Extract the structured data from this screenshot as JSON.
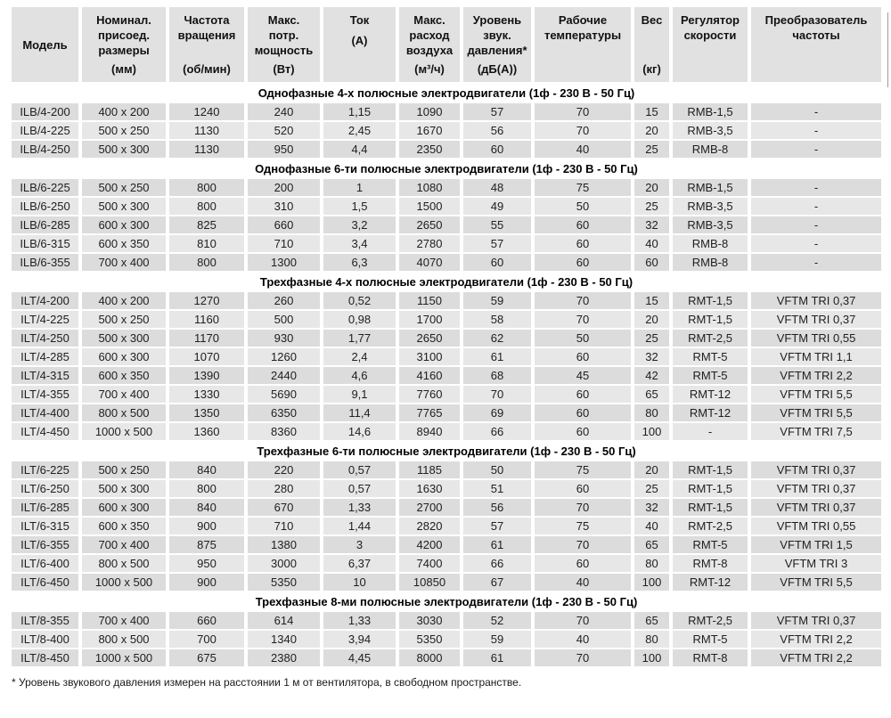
{
  "colors": {
    "cell_dark": "#dcdcdc",
    "cell_light": "#e7e7e7",
    "header_bg": "#e1e1e1",
    "text": "#202020"
  },
  "table": {
    "columns": [
      {
        "id": "model",
        "width": 75,
        "label_lines": [
          "Модель"
        ],
        "unit": null,
        "header_layout": "center"
      },
      {
        "id": "size",
        "width": 94,
        "label_lines": [
          "Номинал.",
          "присоед.",
          "размеры"
        ],
        "unit": "(мм)",
        "header_layout": "between"
      },
      {
        "id": "speed",
        "width": 84,
        "label_lines": [
          "Частота",
          "вращения"
        ],
        "unit": "(об/мин)",
        "header_layout": "between"
      },
      {
        "id": "power",
        "width": 81,
        "label_lines": [
          "Макс.",
          "потр.",
          "мощность"
        ],
        "unit": "(Вт)",
        "header_layout": "between"
      },
      {
        "id": "current",
        "width": 81,
        "label_lines": [
          "Ток"
        ],
        "unit": "(А)",
        "header_layout": "inline"
      },
      {
        "id": "airflow",
        "width": 68,
        "label_lines": [
          "Макс.",
          "расход",
          "воздуха"
        ],
        "unit": "(м³/ч)",
        "header_layout": "between"
      },
      {
        "id": "noise",
        "width": 76,
        "label_lines": [
          "Уровень",
          "звук.",
          "давления*"
        ],
        "unit": "(дБ(А))",
        "header_layout": "between"
      },
      {
        "id": "temperature",
        "width": 108,
        "label_lines": [
          "Рабочие",
          "температуры"
        ],
        "unit": null,
        "header_layout": "top"
      },
      {
        "id": "weight",
        "width": 39,
        "label_lines": [
          "Вес"
        ],
        "unit": "(кг)",
        "header_layout": "between"
      },
      {
        "id": "regulator",
        "width": 84,
        "label_lines": [
          "Регулятор",
          "скорости"
        ],
        "unit": null,
        "header_layout": "top"
      },
      {
        "id": "converter",
        "width": 146,
        "label_lines": [
          "Преобразователь",
          "частоты"
        ],
        "unit": null,
        "header_layout": "top"
      }
    ],
    "sections": [
      {
        "title": "Однофазные 4-х полюсные электродвигатели (1ф - 230 В - 50 Гц)",
        "rows": [
          [
            "ILB/4-200",
            "400 x 200",
            "1240",
            "240",
            "1,15",
            "1090",
            "57",
            "70",
            "15",
            "RMB-1,5",
            "-"
          ],
          [
            "ILB/4-225",
            "500 x 250",
            "1130",
            "520",
            "2,45",
            "1670",
            "56",
            "70",
            "20",
            "RMB-3,5",
            "-"
          ],
          [
            "ILB/4-250",
            "500 x 300",
            "1130",
            "950",
            "4,4",
            "2350",
            "60",
            "40",
            "25",
            "RMB-8",
            "-"
          ]
        ]
      },
      {
        "title": "Однофазные 6-ти полюсные электродвигатели (1ф - 230 В - 50 Гц)",
        "rows": [
          [
            "ILB/6-225",
            "500 x 250",
            "800",
            "200",
            "1",
            "1080",
            "48",
            "75",
            "20",
            "RMB-1,5",
            "-"
          ],
          [
            "ILB/6-250",
            "500 x 300",
            "800",
            "310",
            "1,5",
            "1500",
            "49",
            "50",
            "25",
            "RMB-3,5",
            "-"
          ],
          [
            "ILB/6-285",
            "600 x 300",
            "825",
            "660",
            "3,2",
            "2650",
            "55",
            "60",
            "32",
            "RMB-3,5",
            "-"
          ],
          [
            "ILB/6-315",
            "600 x 350",
            "810",
            "710",
            "3,4",
            "2780",
            "57",
            "60",
            "40",
            "RMB-8",
            "-"
          ],
          [
            "ILB/6-355",
            "700 x 400",
            "800",
            "1300",
            "6,3",
            "4070",
            "60",
            "60",
            "60",
            "RMB-8",
            "-"
          ]
        ]
      },
      {
        "title": "Трехфазные 4-х полюсные электродвигатели (1ф - 230 В - 50 Гц)",
        "rows": [
          [
            "ILT/4-200",
            "400 x 200",
            "1270",
            "260",
            "0,52",
            "1150",
            "59",
            "70",
            "15",
            "RMT-1,5",
            "VFTM TRI 0,37"
          ],
          [
            "ILT/4-225",
            "500 x 250",
            "1160",
            "500",
            "0,98",
            "1700",
            "58",
            "70",
            "20",
            "RMT-1,5",
            "VFTM TRI 0,37"
          ],
          [
            "ILT/4-250",
            "500 x 300",
            "1170",
            "930",
            "1,77",
            "2650",
            "62",
            "50",
            "25",
            "RMT-2,5",
            "VFTM TRI 0,55"
          ],
          [
            "ILT/4-285",
            "600 x 300",
            "1070",
            "1260",
            "2,4",
            "3100",
            "61",
            "60",
            "32",
            "RMT-5",
            "VFTM TRI 1,1"
          ],
          [
            "ILT/4-315",
            "600 x 350",
            "1390",
            "2440",
            "4,6",
            "4160",
            "68",
            "45",
            "42",
            "RMT-5",
            "VFTM TRI 2,2"
          ],
          [
            "ILT/4-355",
            "700 x 400",
            "1330",
            "5690",
            "9,1",
            "7760",
            "70",
            "60",
            "65",
            "RMT-12",
            "VFTM TRI 5,5"
          ],
          [
            "ILT/4-400",
            "800 x 500",
            "1350",
            "6350",
            "11,4",
            "7765",
            "69",
            "60",
            "80",
            "RMT-12",
            "VFTM TRI 5,5"
          ],
          [
            "ILT/4-450",
            "1000 x 500",
            "1360",
            "8360",
            "14,6",
            "8940",
            "66",
            "60",
            "100",
            "-",
            "VFTM TRI 7,5"
          ]
        ]
      },
      {
        "title": "Трехфазные 6-ти полюсные электродвигатели (1ф - 230 В - 50 Гц)",
        "rows": [
          [
            "ILT/6-225",
            "500 x 250",
            "840",
            "220",
            "0,57",
            "1185",
            "50",
            "75",
            "20",
            "RMT-1,5",
            "VFTM TRI 0,37"
          ],
          [
            "ILT/6-250",
            "500 x 300",
            "800",
            "280",
            "0,57",
            "1630",
            "51",
            "60",
            "25",
            "RMT-1,5",
            "VFTM TRI 0,37"
          ],
          [
            "ILT/6-285",
            "600 x 300",
            "840",
            "670",
            "1,33",
            "2700",
            "56",
            "70",
            "32",
            "RMT-1,5",
            "VFTM TRI 0,37"
          ],
          [
            "ILT/6-315",
            "600 x 350",
            "900",
            "710",
            "1,44",
            "2820",
            "57",
            "75",
            "40",
            "RMT-2,5",
            "VFTM TRI 0,55"
          ],
          [
            "ILT/6-355",
            "700 x 400",
            "875",
            "1380",
            "3",
            "4200",
            "61",
            "70",
            "65",
            "RMT-5",
            "VFTM TRI 1,5"
          ],
          [
            "ILT/6-400",
            "800 x 500",
            "950",
            "3000",
            "6,37",
            "7400",
            "66",
            "60",
            "80",
            "RMT-8",
            "VFTM TRI 3"
          ],
          [
            "ILT/6-450",
            "1000 x 500",
            "900",
            "5350",
            "10",
            "10850",
            "67",
            "40",
            "100",
            "RMT-12",
            "VFTM TRI 5,5"
          ]
        ]
      },
      {
        "title": "Трехфазные 8-ми полюсные электродвигатели (1ф - 230 В - 50 Гц)",
        "rows": [
          [
            "ILT/8-355",
            "700 x 400",
            "660",
            "614",
            "1,33",
            "3030",
            "52",
            "70",
            "65",
            "RMT-2,5",
            "VFTM TRI 0,37"
          ],
          [
            "ILT/8-400",
            "800 x 500",
            "700",
            "1340",
            "3,94",
            "5350",
            "59",
            "40",
            "80",
            "RMT-5",
            "VFTM TRI 2,2"
          ],
          [
            "ILT/8-450",
            "1000 x 500",
            "675",
            "2380",
            "4,45",
            "8000",
            "61",
            "70",
            "100",
            "RMT-8",
            "VFTM TRI 2,2"
          ]
        ]
      }
    ],
    "footnote": "* Уровень звукового давления измерен на расстоянии 1 м от вентилятора, в свободном пространстве."
  }
}
